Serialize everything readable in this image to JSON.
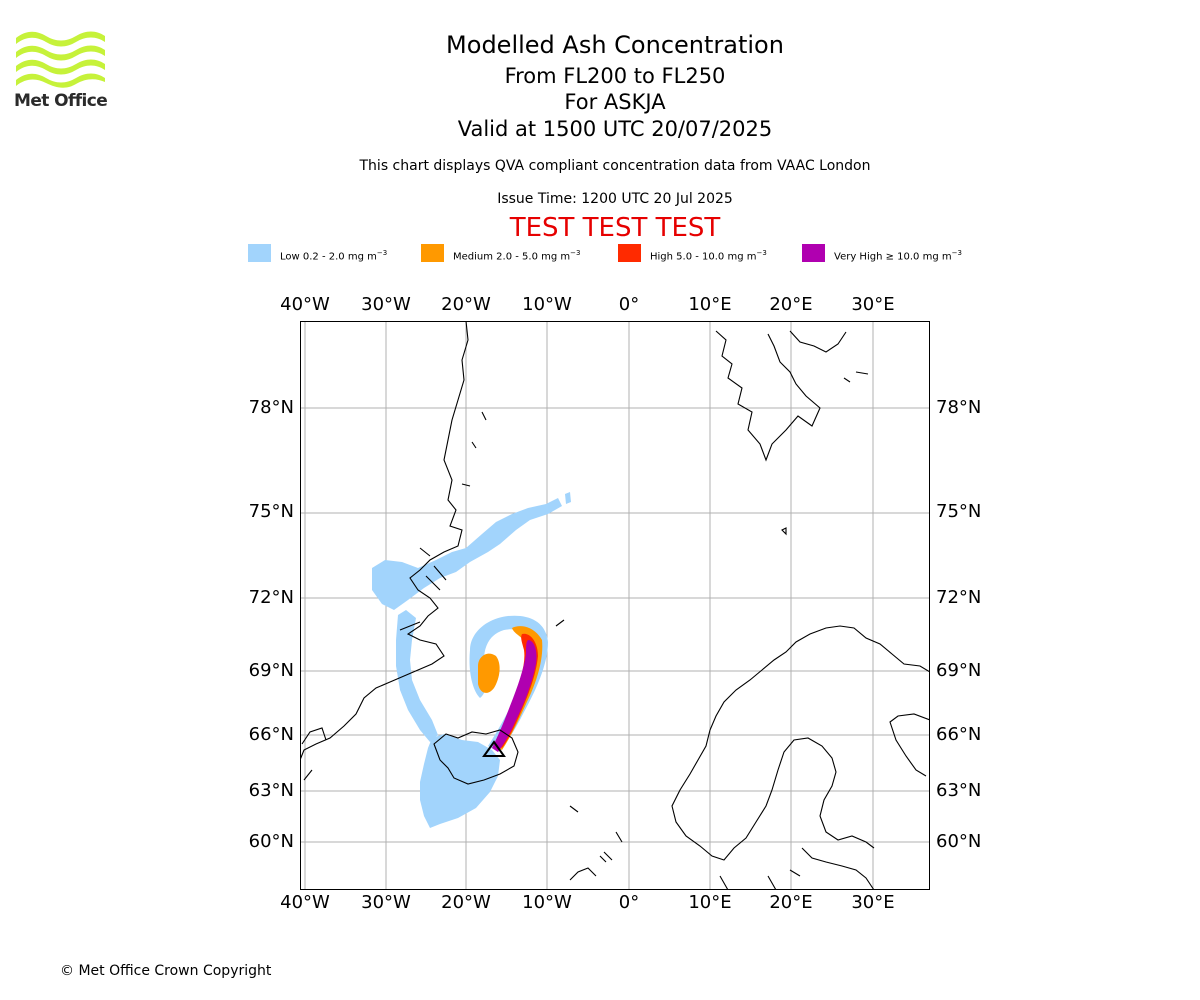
{
  "logo": {
    "text": "Met Office",
    "color": "#c6f23a"
  },
  "header": {
    "title": "Modelled Ash Concentration",
    "levels": "From FL200 to FL250",
    "volcano": "For ASKJA",
    "valid": "Valid at 1500 UTC 20/07/2025",
    "description": "This chart displays QVA compliant concentration data from VAAC London",
    "issue_time": "Issue Time: 1200 UTC 20 Jul 2025",
    "test_banner": "TEST TEST TEST"
  },
  "legend": [
    {
      "label": "Low 0.2 - 2.0 mg m",
      "color": "#a2d4fc"
    },
    {
      "label": "Medium 2.0 - 5.0 mg m",
      "color": "#ff9900"
    },
    {
      "label": "High 5.0 - 10.0 mg m",
      "color": "#ff2a00"
    },
    {
      "label": "Very High ≥ 10.0 mg m",
      "color": "#b000b0"
    }
  ],
  "legend_unit_exponent": "−3",
  "map": {
    "lon_ticks": [
      "40°W",
      "30°W",
      "20°W",
      "10°W",
      "0°",
      "10°E",
      "20°E",
      "30°E"
    ],
    "lat_ticks": [
      "78°N",
      "75°N",
      "72°N",
      "69°N",
      "66°N",
      "63°N",
      "60°N"
    ],
    "grid": true,
    "volcano_marker": "triangle"
  },
  "footer": {
    "copyright": "© Met Office Crown Copyright"
  }
}
